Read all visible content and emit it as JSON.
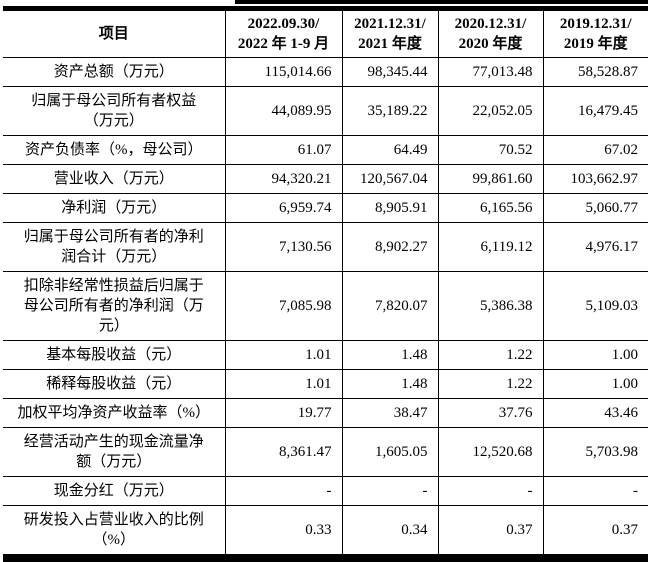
{
  "page": {
    "background_color": "#ffffff",
    "text_color": "#000000",
    "rule_color": "#000000"
  },
  "table": {
    "columns": [
      {
        "label": "项目"
      },
      {
        "label": "2022.09.30/\n2022 年 1-9 月"
      },
      {
        "label": "2021.12.31/\n2021 年度"
      },
      {
        "label": "2020.12.31/\n2020 年度"
      },
      {
        "label": "2019.12.31/\n2019 年度"
      }
    ],
    "rows": [
      {
        "label": "资产总额（万元）",
        "values": [
          "115,014.66",
          "98,345.44",
          "77,013.48",
          "58,528.87"
        ]
      },
      {
        "label": "归属于母公司所有者权益\n（万元）",
        "values": [
          "44,089.95",
          "35,189.22",
          "22,052.05",
          "16,479.45"
        ]
      },
      {
        "label": "资产负债率（%，母公司）",
        "values": [
          "61.07",
          "64.49",
          "70.52",
          "67.02"
        ]
      },
      {
        "label": "营业收入（万元）",
        "values": [
          "94,320.21",
          "120,567.04",
          "99,861.60",
          "103,662.97"
        ]
      },
      {
        "label": "净利润（万元）",
        "values": [
          "6,959.74",
          "8,905.91",
          "6,165.56",
          "5,060.77"
        ]
      },
      {
        "label": "归属于母公司所有者的净利\n润合计（万元）",
        "values": [
          "7,130.56",
          "8,902.27",
          "6,119.12",
          "4,976.17"
        ]
      },
      {
        "label": "扣除非经常性损益后归属于\n母公司所有者的净利润（万\n元）",
        "values": [
          "7,085.98",
          "7,820.07",
          "5,386.38",
          "5,109.03"
        ]
      },
      {
        "label": "基本每股收益（元）",
        "values": [
          "1.01",
          "1.48",
          "1.22",
          "1.00"
        ]
      },
      {
        "label": "稀释每股收益（元）",
        "values": [
          "1.01",
          "1.48",
          "1.22",
          "1.00"
        ]
      },
      {
        "label": "加权平均净资产收益率（%）",
        "values": [
          "19.77",
          "38.47",
          "37.76",
          "43.46"
        ]
      },
      {
        "label": "经营活动产生的现金流量净\n额（万元）",
        "values": [
          "8,361.47",
          "1,605.05",
          "12,520.68",
          "5,703.98"
        ]
      },
      {
        "label": "现金分红（万元）",
        "values": [
          "-",
          "-",
          "-",
          "-"
        ]
      },
      {
        "label": "研发投入占营业收入的比例\n（%）",
        "values": [
          "0.33",
          "0.34",
          "0.37",
          "0.37"
        ]
      }
    ]
  }
}
